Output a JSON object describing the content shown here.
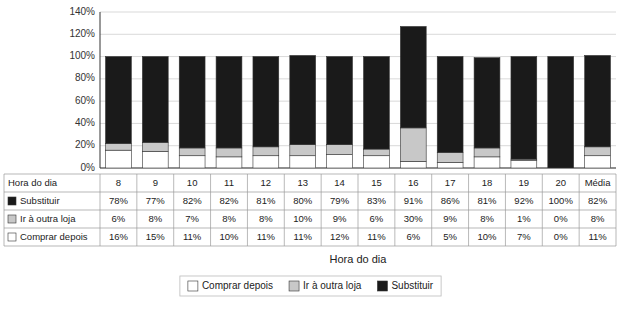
{
  "chart_data": {
    "type": "bar",
    "stacked": true,
    "categories": [
      "8",
      "9",
      "10",
      "11",
      "12",
      "13",
      "14",
      "15",
      "16",
      "17",
      "18",
      "19",
      "20",
      "Média"
    ],
    "x_label": "Hora do dia",
    "series": [
      {
        "name": "Comprar depois",
        "color": "#ffffff",
        "values": [
          16,
          15,
          11,
          10,
          11,
          11,
          12,
          11,
          6,
          5,
          10,
          7,
          0,
          11
        ],
        "value_labels": [
          "16%",
          "15%",
          "11%",
          "10%",
          "11%",
          "11%",
          "12%",
          "11%",
          "6%",
          "5%",
          "10%",
          "7%",
          "0%",
          "11%"
        ]
      },
      {
        "name": "Ir à outra loja",
        "color": "#c8c8c8",
        "values": [
          6,
          8,
          7,
          8,
          8,
          10,
          9,
          6,
          30,
          9,
          8,
          1,
          0,
          8
        ],
        "value_labels": [
          "6%",
          "8%",
          "7%",
          "8%",
          "8%",
          "10%",
          "9%",
          "6%",
          "30%",
          "9%",
          "8%",
          "1%",
          "0%",
          "8%"
        ]
      },
      {
        "name": "Substituir",
        "color": "#1a1a1a",
        "values": [
          78,
          77,
          82,
          82,
          81,
          80,
          79,
          83,
          91,
          86,
          81,
          92,
          100,
          82
        ],
        "value_labels": [
          "78%",
          "77%",
          "82%",
          "82%",
          "81%",
          "80%",
          "79%",
          "83%",
          "91%",
          "86%",
          "81%",
          "92%",
          "100%",
          "82%"
        ]
      }
    ],
    "ylim": [
      0,
      140
    ],
    "yticks": [
      {
        "value": 0,
        "label": "0%"
      },
      {
        "value": 20,
        "label": "20%"
      },
      {
        "value": 40,
        "label": "40%"
      },
      {
        "value": 60,
        "label": "60%"
      },
      {
        "value": 80,
        "label": "80%"
      },
      {
        "value": 100,
        "label": "100%"
      },
      {
        "value": 120,
        "label": "120%"
      },
      {
        "value": 140,
        "label": "140%"
      }
    ],
    "grid": true,
    "data_labels": true,
    "legend": "bottom"
  }
}
